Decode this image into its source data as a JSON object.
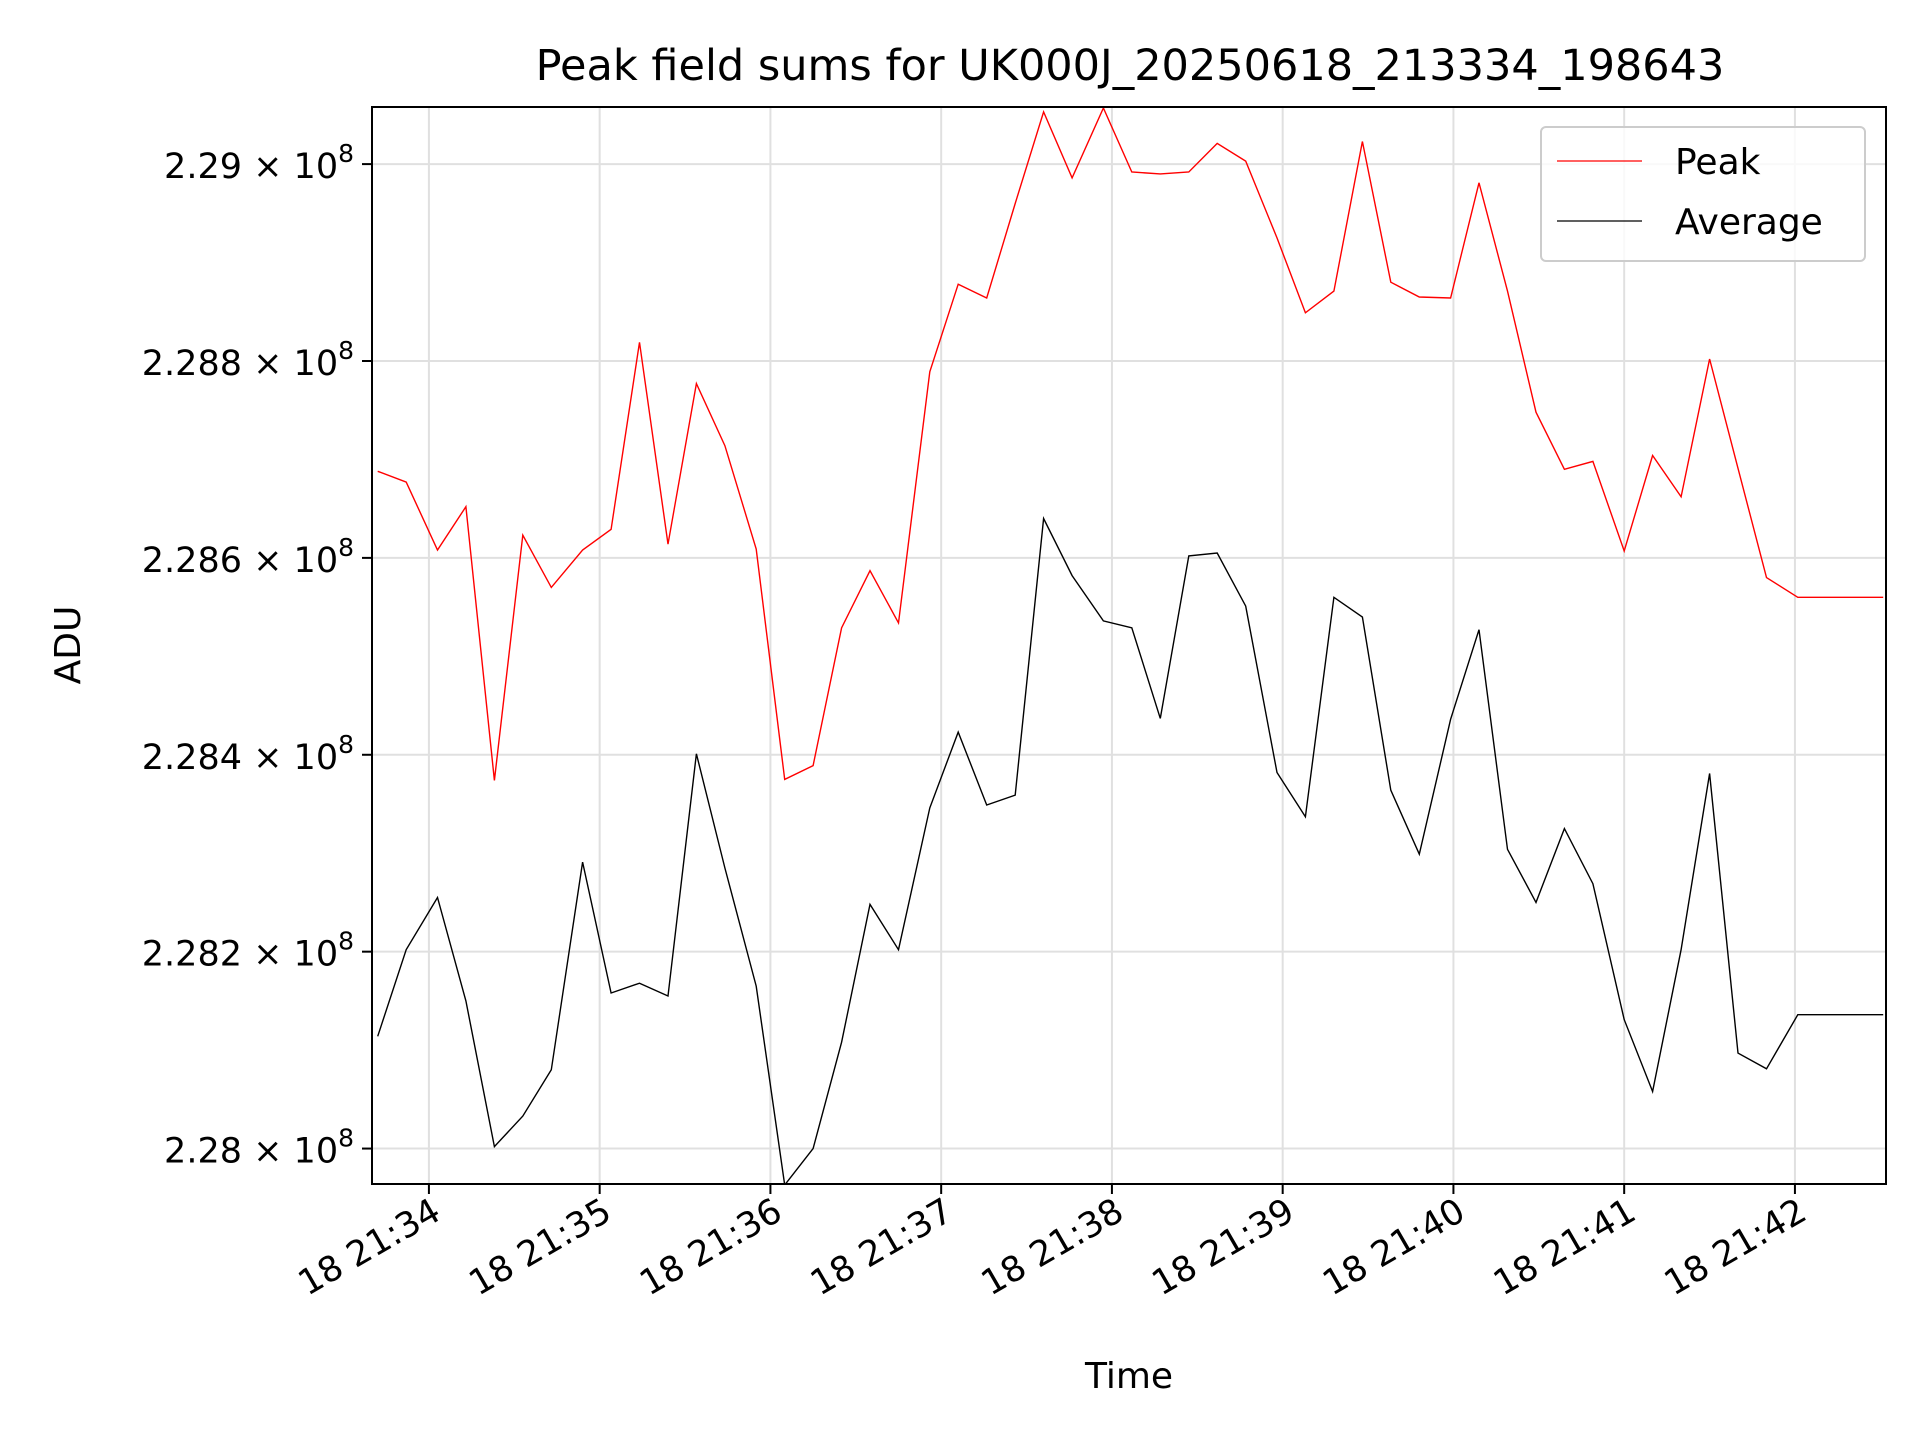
{
  "chart_data": {
    "type": "line",
    "title": "Peak field sums for UK000J_20250618_213334_198643",
    "xlabel": "Time",
    "ylabel": "ADU",
    "grid": true,
    "legend_position": "top-right",
    "x_tick_labels": [
      "18 21:34",
      "18 21:35",
      "18 21:36",
      "18 21:37",
      "18 21:38",
      "18 21:39",
      "18 21:40",
      "18 21:41",
      "18 21:42"
    ],
    "y_ticks": [
      {
        "value": 228000000,
        "mantissa": "2.28",
        "exponent": "8"
      },
      {
        "value": 228200000,
        "mantissa": "2.282",
        "exponent": "8"
      },
      {
        "value": 228400000,
        "mantissa": "2.284",
        "exponent": "8"
      },
      {
        "value": 228600000,
        "mantissa": "2.286",
        "exponent": "8"
      },
      {
        "value": 228800000,
        "mantissa": "2.288",
        "exponent": "8"
      },
      {
        "value": 229000000,
        "mantissa": "2.29",
        "exponent": "8"
      }
    ],
    "ylim": [
      227964000,
      229058000
    ],
    "x": [
      "21:33:42",
      "21:33:52",
      "21:34:03",
      "21:34:13",
      "21:34:23",
      "21:34:33",
      "21:34:43",
      "21:34:54",
      "21:35:04",
      "21:35:14",
      "21:35:24",
      "21:35:34",
      "21:35:44",
      "21:35:55",
      "21:36:05",
      "21:36:15",
      "21:36:25",
      "21:36:35",
      "21:36:45",
      "21:36:56",
      "21:37:06",
      "21:37:16",
      "21:37:26",
      "21:37:36",
      "21:37:46",
      "21:37:57",
      "21:38:07",
      "21:38:17",
      "21:38:27",
      "21:38:37",
      "21:38:47",
      "21:38:58",
      "21:39:08",
      "21:39:18",
      "21:39:28",
      "21:39:38",
      "21:39:48",
      "21:39:59",
      "21:40:09",
      "21:40:19",
      "21:40:29",
      "21:40:39",
      "21:40:49",
      "21:41:00",
      "21:41:10",
      "21:41:20",
      "21:41:30",
      "21:41:40",
      "21:41:50",
      "21:42:01",
      "21:42:11",
      "21:42:21",
      "21:42:31"
    ],
    "series": [
      {
        "name": "Peak",
        "color": "#ff0000",
        "values": [
          228688000,
          228677000,
          228608000,
          228652000,
          228374000,
          228623000,
          228570000,
          228608000,
          228629000,
          228819000,
          228614000,
          228777000,
          228714000,
          228609000,
          228375000,
          228389000,
          228529000,
          228587000,
          228534000,
          228789000,
          228878000,
          228864000,
          228960000,
          229053000,
          228986000,
          229057000,
          228992000,
          228990000,
          228992000,
          229021000,
          229003000,
          228925000,
          228849000,
          228871000,
          229023000,
          228880000,
          228865000,
          228864000,
          228981000,
          228871000,
          228748000,
          228690000,
          228698000,
          228607000,
          228704000,
          228662000,
          228802000,
          228691000,
          228580000,
          228560000,
          228560000,
          228560000,
          228560000
        ]
      },
      {
        "name": "Average",
        "color": "#000000",
        "values": [
          228114000,
          228202000,
          228255000,
          228150000,
          228002000,
          228033000,
          228080000,
          228291000,
          228158000,
          228168000,
          228155000,
          228401000,
          228285000,
          228165000,
          227963000,
          228000000,
          228108000,
          228248000,
          228202000,
          228346000,
          228423000,
          228349000,
          228359000,
          228640000,
          228582000,
          228536000,
          228529000,
          228437000,
          228602000,
          228605000,
          228551000,
          228382000,
          228337000,
          228560000,
          228540000,
          228364000,
          228299000,
          228436000,
          228527000,
          228304000,
          228250000,
          228325000,
          228269000,
          228131000,
          228058000,
          228202000,
          228381000,
          228097000,
          228081000,
          228136000,
          228136000,
          228136000,
          228136000
        ]
      }
    ]
  }
}
